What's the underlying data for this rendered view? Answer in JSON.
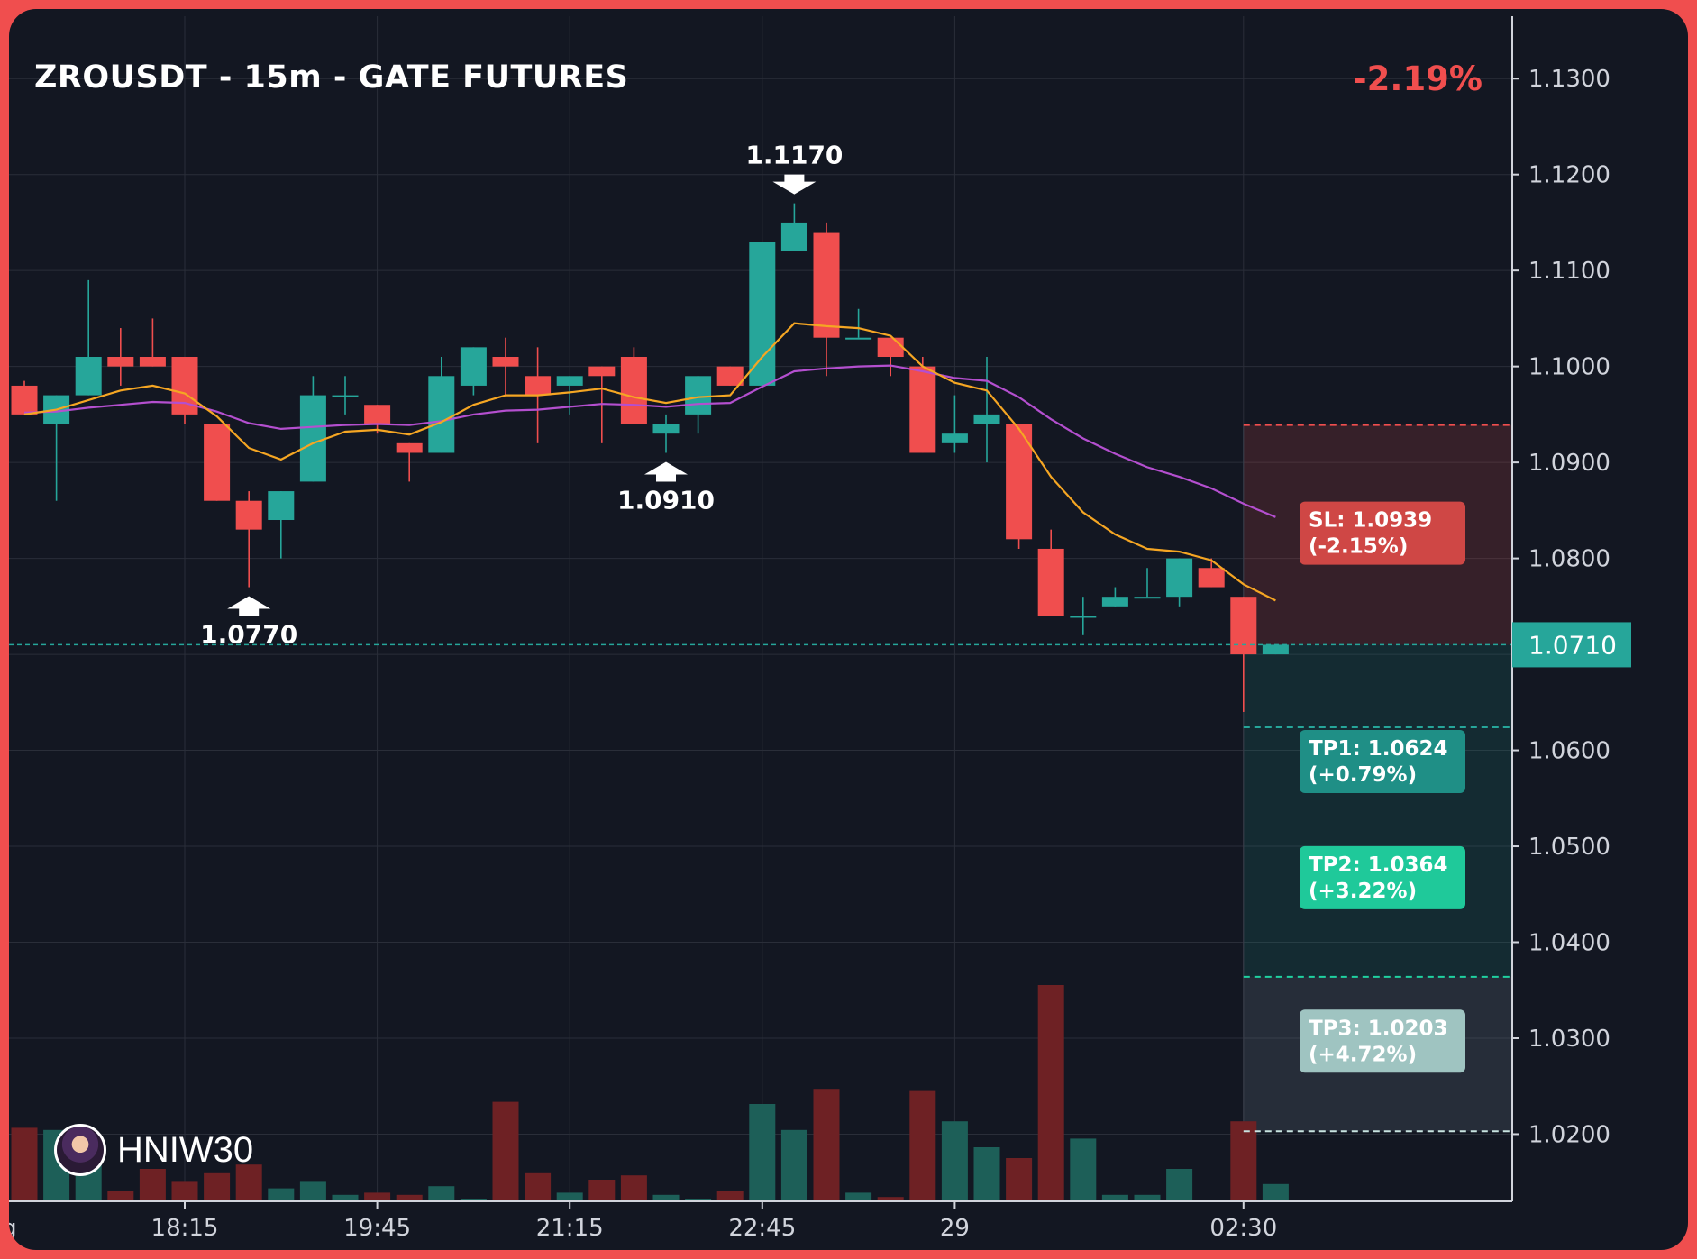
{
  "header": {
    "title": "ZROUSDT - 15m - GATE FUTURES",
    "change": "-2.19%"
  },
  "branding": {
    "name": "HNIW30"
  },
  "colors": {
    "up": "#26a69a",
    "down": "#f04e4e",
    "ema_fast": "#f5a623",
    "ema_slow": "#b44fcf",
    "background": "#131722",
    "grid": "#2a2e39"
  },
  "chart_data": {
    "type": "candlestick",
    "title": "ZROUSDT - 15m - GATE FUTURES",
    "ylim": [
      1.013,
      1.1365
    ],
    "y_ticks": [
      "1.0200",
      "1.0300",
      "1.0400",
      "1.0500",
      "1.0600",
      "1.0700",
      "1.0800",
      "1.0900",
      "1.1000",
      "1.1100",
      "1.1200",
      "1.1300"
    ],
    "x_ticks": [
      "ug",
      "18:15",
      "19:45",
      "21:15",
      "22:45",
      "29",
      "02:30"
    ],
    "x_tick_index": [
      -0.7,
      5,
      11,
      17,
      23,
      29,
      38
    ],
    "grid": true,
    "candles": [
      {
        "o": 1.098,
        "h": 1.0985,
        "l": 1.095,
        "c": 1.095
      },
      {
        "o": 1.094,
        "h": 1.097,
        "l": 1.086,
        "c": 1.097
      },
      {
        "o": 1.097,
        "h": 1.109,
        "l": 1.097,
        "c": 1.101
      },
      {
        "o": 1.101,
        "h": 1.104,
        "l": 1.098,
        "c": 1.1
      },
      {
        "o": 1.101,
        "h": 1.105,
        "l": 1.1,
        "c": 1.1
      },
      {
        "o": 1.101,
        "h": 1.101,
        "l": 1.094,
        "c": 1.095
      },
      {
        "o": 1.094,
        "h": 1.094,
        "l": 1.086,
        "c": 1.086
      },
      {
        "o": 1.086,
        "h": 1.087,
        "l": 1.077,
        "c": 1.083
      },
      {
        "o": 1.084,
        "h": 1.087,
        "l": 1.08,
        "c": 1.087
      },
      {
        "o": 1.088,
        "h": 1.099,
        "l": 1.088,
        "c": 1.097
      },
      {
        "o": 1.097,
        "h": 1.099,
        "l": 1.095,
        "c": 1.097
      },
      {
        "o": 1.096,
        "h": 1.096,
        "l": 1.093,
        "c": 1.094
      },
      {
        "o": 1.092,
        "h": 1.092,
        "l": 1.088,
        "c": 1.091
      },
      {
        "o": 1.091,
        "h": 1.101,
        "l": 1.091,
        "c": 1.099
      },
      {
        "o": 1.098,
        "h": 1.102,
        "l": 1.097,
        "c": 1.102
      },
      {
        "o": 1.101,
        "h": 1.103,
        "l": 1.097,
        "c": 1.1
      },
      {
        "o": 1.099,
        "h": 1.102,
        "l": 1.092,
        "c": 1.097
      },
      {
        "o": 1.098,
        "h": 1.099,
        "l": 1.095,
        "c": 1.099
      },
      {
        "o": 1.1,
        "h": 1.1,
        "l": 1.092,
        "c": 1.099
      },
      {
        "o": 1.101,
        "h": 1.102,
        "l": 1.094,
        "c": 1.094
      },
      {
        "o": 1.093,
        "h": 1.095,
        "l": 1.091,
        "c": 1.094
      },
      {
        "o": 1.095,
        "h": 1.099,
        "l": 1.093,
        "c": 1.099
      },
      {
        "o": 1.1,
        "h": 1.1,
        "l": 1.098,
        "c": 1.098
      },
      {
        "o": 1.098,
        "h": 1.113,
        "l": 1.098,
        "c": 1.113
      },
      {
        "o": 1.112,
        "h": 1.117,
        "l": 1.112,
        "c": 1.115
      },
      {
        "o": 1.114,
        "h": 1.115,
        "l": 1.099,
        "c": 1.103
      },
      {
        "o": 1.103,
        "h": 1.106,
        "l": 1.103,
        "c": 1.103
      },
      {
        "o": 1.103,
        "h": 1.103,
        "l": 1.099,
        "c": 1.101
      },
      {
        "o": 1.1,
        "h": 1.101,
        "l": 1.091,
        "c": 1.091
      },
      {
        "o": 1.092,
        "h": 1.097,
        "l": 1.091,
        "c": 1.093
      },
      {
        "o": 1.094,
        "h": 1.101,
        "l": 1.09,
        "c": 1.095
      },
      {
        "o": 1.094,
        "h": 1.094,
        "l": 1.081,
        "c": 1.082
      },
      {
        "o": 1.081,
        "h": 1.083,
        "l": 1.074,
        "c": 1.074
      },
      {
        "o": 1.074,
        "h": 1.076,
        "l": 1.072,
        "c": 1.074
      },
      {
        "o": 1.075,
        "h": 1.077,
        "l": 1.075,
        "c": 1.076
      },
      {
        "o": 1.076,
        "h": 1.079,
        "l": 1.076,
        "c": 1.076
      },
      {
        "o": 1.076,
        "h": 1.08,
        "l": 1.075,
        "c": 1.08
      },
      {
        "o": 1.079,
        "h": 1.08,
        "l": 1.077,
        "c": 1.077
      },
      {
        "o": 1.076,
        "h": 1.076,
        "l": 1.064,
        "c": 1.07
      },
      {
        "o": 1.07,
        "h": 1.071,
        "l": 1.07,
        "c": 1.071
      }
    ],
    "volume": [
      0.34,
      0.33,
      0.3,
      0.05,
      0.15,
      0.09,
      0.13,
      0.17,
      0.06,
      0.09,
      0.03,
      0.04,
      0.03,
      0.07,
      0.01,
      0.46,
      0.13,
      0.04,
      0.1,
      0.12,
      0.03,
      0.01,
      0.05,
      0.45,
      0.33,
      0.52,
      0.04,
      0.02,
      0.51,
      0.37,
      0.25,
      0.2,
      1.0,
      0.29,
      0.03,
      0.03,
      0.15,
      0.0,
      0.37,
      0.08
    ],
    "ema_fast": [
      1.095,
      1.0955,
      1.0965,
      1.0975,
      1.098,
      1.0972,
      1.0948,
      1.0915,
      1.0903,
      1.092,
      1.0932,
      1.0934,
      1.0929,
      1.0942,
      1.096,
      1.097,
      1.097,
      1.0973,
      1.0977,
      1.0968,
      1.0962,
      1.0968,
      1.097,
      1.101,
      1.1045,
      1.1042,
      1.104,
      1.1032,
      1.1,
      1.0983,
      1.0975,
      1.0935,
      1.0885,
      1.0848,
      1.0825,
      1.081,
      1.0807,
      1.0798,
      1.0773,
      1.0756
    ],
    "ema_slow": [
      1.0952,
      1.0953,
      1.0957,
      1.096,
      1.0963,
      1.0962,
      1.0953,
      1.0941,
      1.0935,
      1.0937,
      1.0939,
      1.094,
      1.0939,
      1.0943,
      1.095,
      1.0954,
      1.0955,
      1.0958,
      1.0961,
      1.096,
      1.0958,
      1.0961,
      1.0962,
      1.0979,
      1.0995,
      1.0998,
      1.1,
      1.1001,
      1.0995,
      1.0988,
      1.0985,
      1.0968,
      1.0945,
      1.0925,
      1.0909,
      1.0895,
      1.0885,
      1.0873,
      1.0857,
      1.0843
    ],
    "markers": [
      {
        "index": 7,
        "price": 1.077,
        "label": "1.0770",
        "direction": "up"
      },
      {
        "index": 20,
        "price": 1.091,
        "label": "1.0910",
        "direction": "up"
      },
      {
        "index": 24,
        "price": 1.117,
        "label": "1.1170",
        "direction": "down"
      }
    ],
    "current_price": {
      "value": 1.071,
      "label": "1.0710"
    },
    "levels": [
      {
        "price": 1.0939,
        "label": "SL: 1.0939",
        "sub": "(-2.15%)",
        "color": "#f04e4e",
        "box_color": "#cf4745",
        "text_color": "#ffffff"
      },
      {
        "price": 1.0624,
        "label": "TP1: 1.0624",
        "sub": "(+0.79%)",
        "color": "#26a69a",
        "box_color": "#1f8f86",
        "text_color": "#ffffff"
      },
      {
        "price": 1.0364,
        "label": "TP2: 1.0364",
        "sub": "(+3.22%)",
        "color": "#1fd1a0",
        "box_color": "#1fc99a",
        "text_color": "#ffffff"
      },
      {
        "price": 1.0203,
        "label": "TP3: 1.0203",
        "sub": "(+4.72%)",
        "color": "#c8e3e0",
        "box_color": "#9fc4c1",
        "text_color": "#ffffff"
      }
    ]
  }
}
